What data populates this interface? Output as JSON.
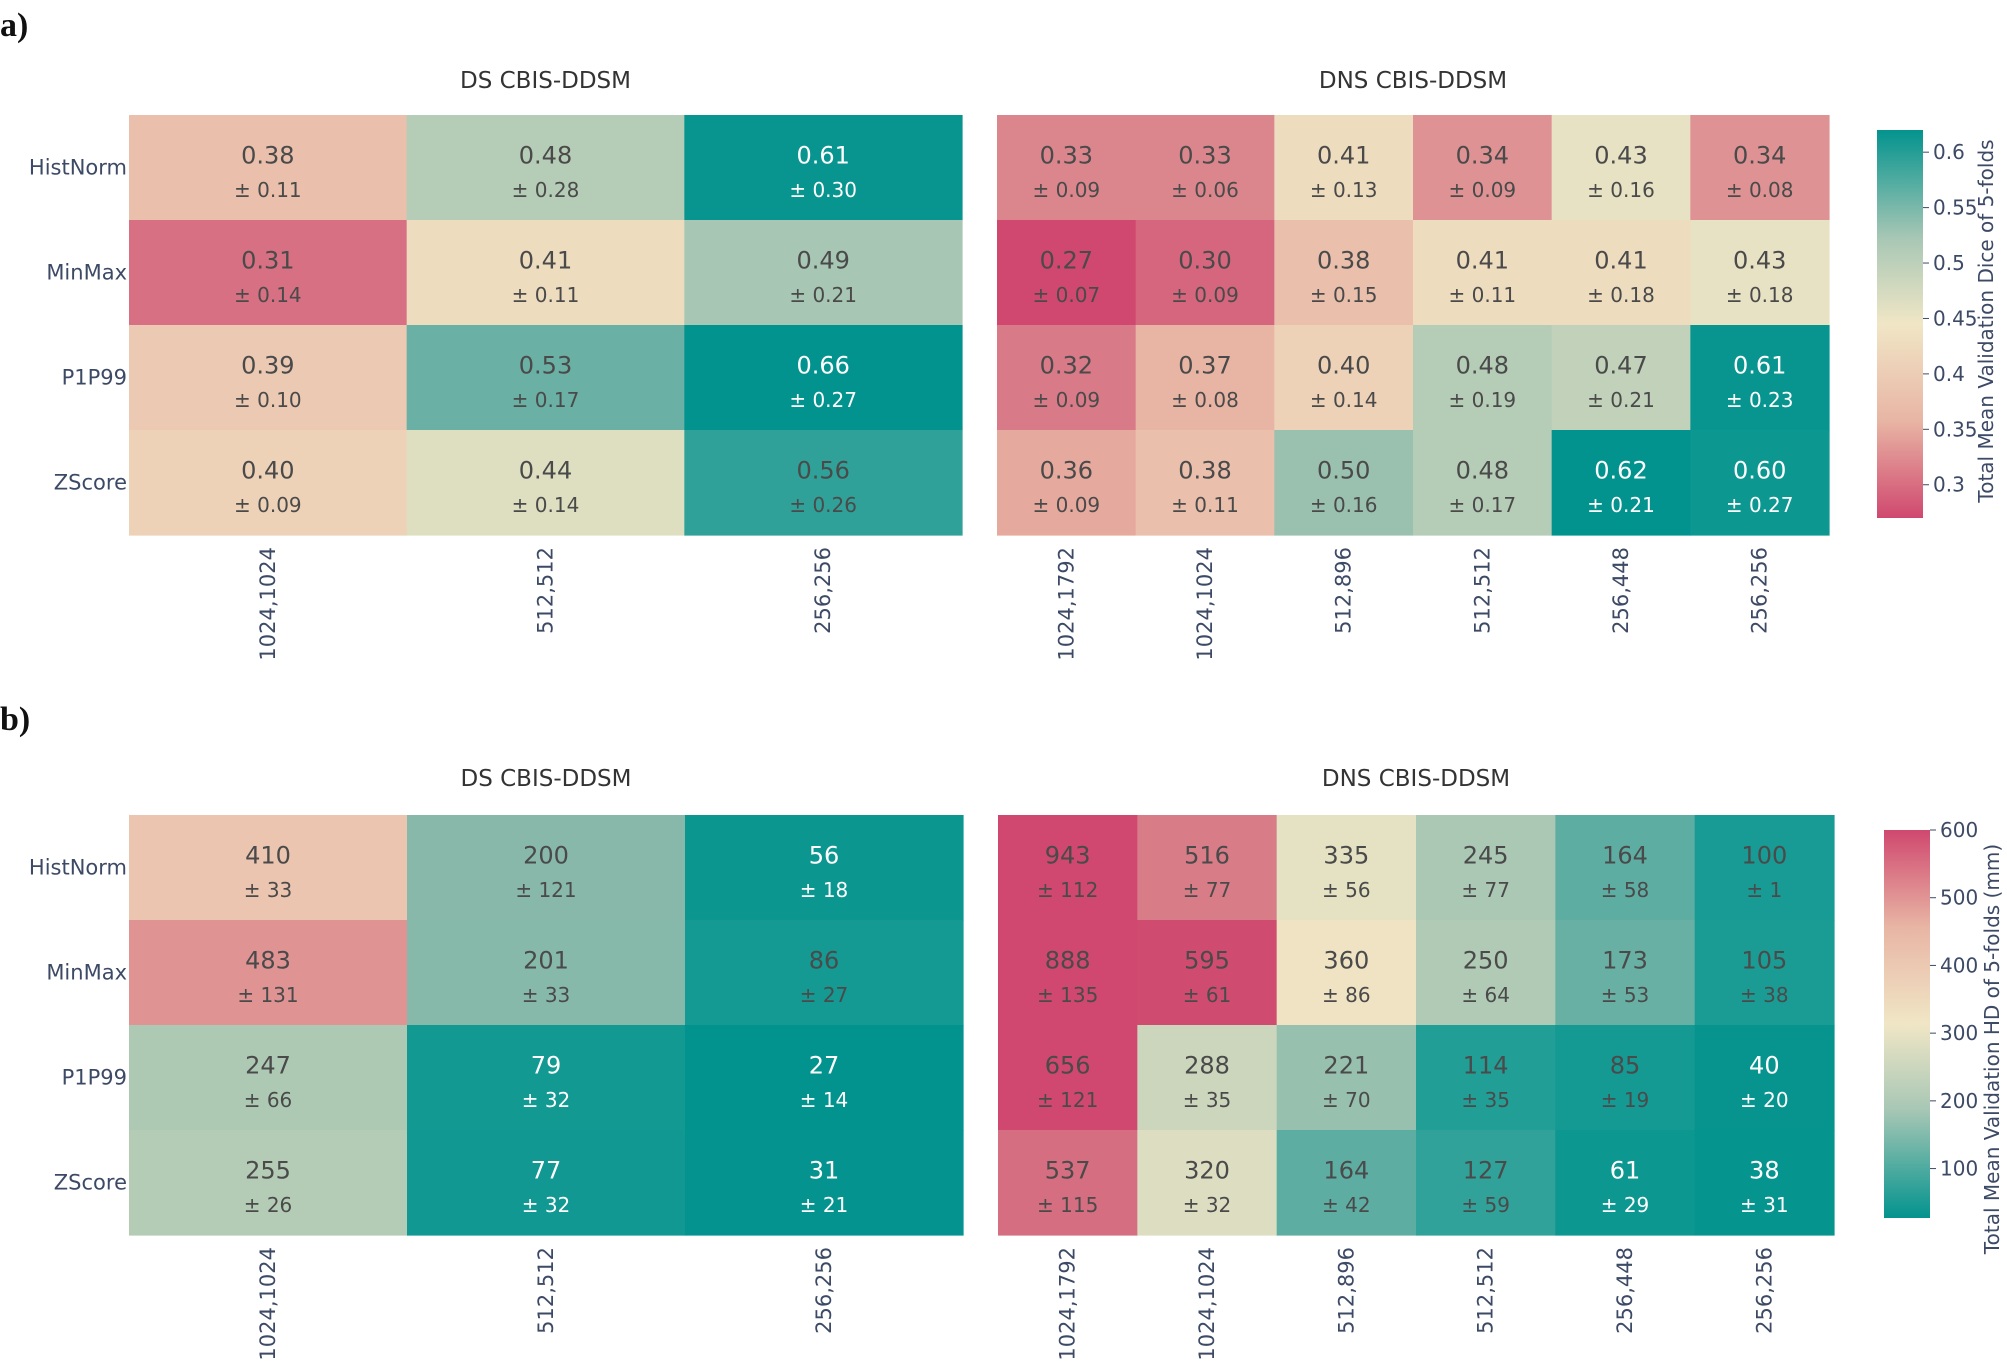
{
  "chart_data": [
    {
      "type": "heatmap",
      "panel_label": "a)",
      "colorbar": {
        "title": "Total Mean Validation Dice of 5-folds",
        "min": 0.27,
        "max": 0.62,
        "ticks": [
          "0.3",
          "0.35",
          "0.4",
          "0.45",
          "0.5",
          "0.55",
          "0.6"
        ],
        "tick_values": [
          0.3,
          0.35,
          0.4,
          0.45,
          0.5,
          0.55,
          0.6
        ],
        "high_is_teal": true
      },
      "rows": [
        "HistNorm",
        "MinMax",
        "P1P99",
        "ZScore"
      ],
      "subplots": [
        {
          "title": "DS CBIS-DDSM",
          "columns": [
            "1024,1024",
            "512,512",
            "256,256"
          ],
          "mean_labels": [
            [
              "0.38",
              "0.48",
              "0.61"
            ],
            [
              "0.31",
              "0.41",
              "0.49"
            ],
            [
              "0.39",
              "0.53",
              "0.66"
            ],
            [
              "0.40",
              "0.44",
              "0.56"
            ]
          ],
          "std_labels": [
            [
              "± 0.11",
              "± 0.28",
              "± 0.30"
            ],
            [
              "± 0.14",
              "± 0.11",
              "± 0.21"
            ],
            [
              "± 0.10",
              "± 0.17",
              "± 0.27"
            ],
            [
              "± 0.09",
              "± 0.14",
              "± 0.26"
            ]
          ],
          "values": [
            [
              0.38,
              0.48,
              0.61
            ],
            [
              0.31,
              0.41,
              0.49
            ],
            [
              0.39,
              0.53,
              0.66
            ],
            [
              0.4,
              0.44,
              0.56
            ]
          ]
        },
        {
          "title": "DNS CBIS-DDSM",
          "columns": [
            "1024,1792",
            "1024,1024",
            "512,896",
            "512,512",
            "256,448",
            "256,256"
          ],
          "mean_labels": [
            [
              "0.33",
              "0.33",
              "0.41",
              "0.34",
              "0.43",
              "0.34"
            ],
            [
              "0.27",
              "0.30",
              "0.38",
              "0.41",
              "0.41",
              "0.43"
            ],
            [
              "0.32",
              "0.37",
              "0.40",
              "0.48",
              "0.47",
              "0.61"
            ],
            [
              "0.36",
              "0.38",
              "0.50",
              "0.48",
              "0.62",
              "0.60"
            ]
          ],
          "std_labels": [
            [
              "± 0.09",
              "± 0.06",
              "± 0.13",
              "± 0.09",
              "± 0.16",
              "± 0.08"
            ],
            [
              "± 0.07",
              "± 0.09",
              "± 0.15",
              "± 0.11",
              "± 0.18",
              "± 0.18"
            ],
            [
              "± 0.09",
              "± 0.08",
              "± 0.14",
              "± 0.19",
              "± 0.21",
              "± 0.23"
            ],
            [
              "± 0.09",
              "± 0.11",
              "± 0.16",
              "± 0.17",
              "± 0.21",
              "± 0.27"
            ]
          ],
          "values": [
            [
              0.33,
              0.33,
              0.41,
              0.34,
              0.43,
              0.34
            ],
            [
              0.27,
              0.3,
              0.38,
              0.41,
              0.41,
              0.43
            ],
            [
              0.32,
              0.37,
              0.4,
              0.48,
              0.47,
              0.61
            ],
            [
              0.36,
              0.38,
              0.5,
              0.48,
              0.62,
              0.6
            ]
          ]
        }
      ]
    },
    {
      "type": "heatmap",
      "panel_label": "b)",
      "colorbar": {
        "title": "Total Mean Validation HD of 5-folds (mm)",
        "min": 27,
        "max": 600,
        "ticks": [
          "100",
          "200",
          "300",
          "400",
          "500",
          "600"
        ],
        "tick_values": [
          100,
          200,
          300,
          400,
          500,
          600
        ],
        "high_is_teal": false
      },
      "rows": [
        "HistNorm",
        "MinMax",
        "P1P99",
        "ZScore"
      ],
      "subplots": [
        {
          "title": "DS CBIS-DDSM",
          "columns": [
            "1024,1024",
            "512,512",
            "256,256"
          ],
          "mean_labels": [
            [
              "410",
              "200",
              "56"
            ],
            [
              "483",
              "201",
              "86"
            ],
            [
              "247",
              "79",
              "27"
            ],
            [
              "255",
              "77",
              "31"
            ]
          ],
          "std_labels": [
            [
              "± 33",
              "± 121",
              "± 18"
            ],
            [
              "± 131",
              "± 33",
              "± 27"
            ],
            [
              "± 66",
              "± 32",
              "± 14"
            ],
            [
              "± 26",
              "± 32",
              "± 21"
            ]
          ],
          "values": [
            [
              410,
              200,
              56
            ],
            [
              483,
              201,
              86
            ],
            [
              247,
              79,
              27
            ],
            [
              255,
              77,
              31
            ]
          ]
        },
        {
          "title": "DNS CBIS-DDSM",
          "columns": [
            "1024,1792",
            "1024,1024",
            "512,896",
            "512,512",
            "256,448",
            "256,256"
          ],
          "mean_labels": [
            [
              "943",
              "516",
              "335",
              "245",
              "164",
              "100"
            ],
            [
              "888",
              "595",
              "360",
              "250",
              "173",
              "105"
            ],
            [
              "656",
              "288",
              "221",
              "114",
              "85",
              "40"
            ],
            [
              "537",
              "320",
              "164",
              "127",
              "61",
              "38"
            ]
          ],
          "std_labels": [
            [
              "± 112",
              "± 77",
              "± 56",
              "± 77",
              "± 58",
              "± 1"
            ],
            [
              "± 135",
              "± 61",
              "± 86",
              "± 64",
              "± 53",
              "± 38"
            ],
            [
              "± 121",
              "± 35",
              "± 70",
              "± 35",
              "± 19",
              "± 20"
            ],
            [
              "± 115",
              "± 32",
              "± 42",
              "± 59",
              "± 29",
              "± 31"
            ]
          ],
          "values": [
            [
              943,
              516,
              335,
              245,
              164,
              100
            ],
            [
              888,
              595,
              360,
              250,
              173,
              105
            ],
            [
              656,
              288,
              221,
              114,
              85,
              40
            ],
            [
              537,
              320,
              164,
              127,
              61,
              38
            ]
          ]
        }
      ]
    }
  ],
  "colors": {
    "scale": [
      "#d0486f",
      "#d87a87",
      "#e8b5a4",
      "#f0e6c6",
      "#c2d2ba",
      "#7fb5a8",
      "#1b9c95",
      "#03938e"
    ],
    "axis_text": "#3d4a66",
    "dark_text": "#4a4a4a",
    "light_text": "#ffffff"
  }
}
